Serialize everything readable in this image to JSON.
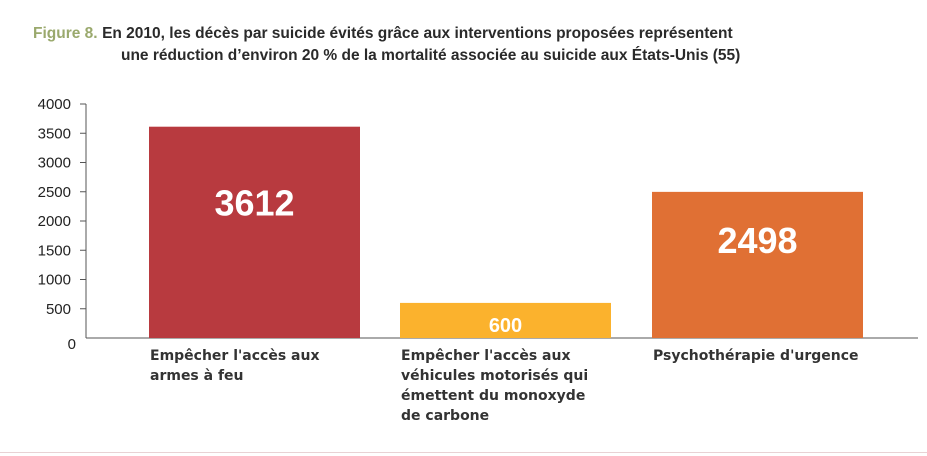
{
  "figure": {
    "label": "Figure 8.",
    "title_line1": "En 2010, les décès par suicide évités grâce aux interventions proposées représentent",
    "title_line2": "une réduction d’environ 20 % de la mortalité associée au suicide aux États-Unis (55)"
  },
  "chart_data": {
    "type": "bar",
    "categories": [
      [
        "Empêcher l'accès aux",
        "armes à feu"
      ],
      [
        "Empêcher l'accès aux",
        "véhicules motorisés qui",
        "émettent du monoxyde",
        "de carbone"
      ],
      [
        "Psychothérapie d'urgence"
      ]
    ],
    "values": [
      3612,
      600,
      2498
    ],
    "data_labels": [
      "3612",
      "600",
      "2498"
    ],
    "colors": [
      "#b83a3f",
      "#fbb22d",
      "#e07034"
    ],
    "ylim": [
      0,
      4000
    ],
    "yticks": [
      0,
      500,
      1000,
      1500,
      2000,
      2500,
      3000,
      3500,
      4000
    ],
    "ytick_labels": [
      "0",
      "500",
      "1000",
      "1500",
      "2000",
      "2500",
      "3000",
      "3500",
      "4000"
    ],
    "xlabel": "",
    "ylabel": "",
    "grid": false,
    "legend": "none"
  }
}
